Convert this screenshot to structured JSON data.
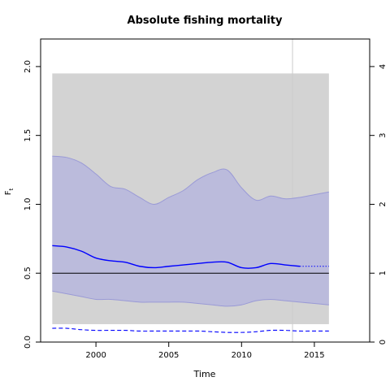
{
  "chart_data": {
    "type": "line",
    "title": "Absolute fishing mortality",
    "xlabel": "Time",
    "ylabel": "F",
    "ylabel_sub": "t",
    "xlim": [
      1996.2,
      2018.8
    ],
    "ylim": [
      0,
      2.2
    ],
    "xticks": [
      2000,
      2005,
      2010,
      2015
    ],
    "xtick_labels": [
      "2000",
      "2005",
      "2010",
      "2015"
    ],
    "yticks": [
      0.0,
      0.5,
      1.0,
      1.5,
      2.0
    ],
    "ytick_labels": [
      "0.0",
      "0.5",
      "1.0",
      "1.5",
      "2.0"
    ],
    "y2_ticks": [
      0,
      0.5,
      1.0,
      1.5,
      2.0
    ],
    "y2_tick_labels": [
      "0",
      "1",
      "2",
      "3",
      "4"
    ],
    "grey_band": {
      "x": [
        1997,
        2016
      ],
      "y": [
        0.13,
        1.95
      ],
      "color": "#d3d3d3"
    },
    "vline": {
      "x": 2013.5,
      "color": "#cccccc"
    },
    "hline": {
      "y": 0.5,
      "color": "#000000"
    },
    "ci": {
      "color": "#bbbbdc",
      "border": "#9a9ad6",
      "x": [
        1997,
        1998,
        1999,
        2000,
        2001,
        2002,
        2003,
        2004,
        2005,
        2006,
        2007,
        2008,
        2009,
        2010,
        2011,
        2012,
        2013,
        2014,
        2015,
        2016
      ],
      "upper": [
        1.35,
        1.34,
        1.3,
        1.22,
        1.13,
        1.11,
        1.05,
        1.0,
        1.05,
        1.1,
        1.18,
        1.23,
        1.25,
        1.12,
        1.03,
        1.06,
        1.04,
        1.05,
        1.07,
        1.09
      ],
      "lower": [
        0.37,
        0.35,
        0.33,
        0.31,
        0.31,
        0.3,
        0.29,
        0.29,
        0.29,
        0.29,
        0.28,
        0.27,
        0.26,
        0.27,
        0.3,
        0.31,
        0.3,
        0.29,
        0.28,
        0.27
      ]
    },
    "series": [
      {
        "color": "#0000ff",
        "style": "solid",
        "x": [
          1997,
          1998,
          1999,
          2000,
          2001,
          2002,
          2003,
          2004,
          2005,
          2006,
          2007,
          2008,
          2009,
          2010,
          2011,
          2012,
          2013,
          2014
        ],
        "values": [
          0.7,
          0.69,
          0.66,
          0.61,
          0.59,
          0.58,
          0.55,
          0.54,
          0.55,
          0.56,
          0.57,
          0.58,
          0.58,
          0.54,
          0.54,
          0.57,
          0.56,
          0.55
        ]
      },
      {
        "color": "#0000ff",
        "style": "dotted",
        "x": [
          2014,
          2016
        ],
        "values": [
          0.55,
          0.55
        ]
      },
      {
        "color": "#0000ff",
        "style": "dashed",
        "x": [
          1997,
          1998,
          1999,
          2000,
          2001,
          2002,
          2003,
          2004,
          2005,
          2006,
          2007,
          2008,
          2009,
          2010,
          2011,
          2012,
          2013,
          2014,
          2015,
          2016
        ],
        "values": [
          0.1,
          0.1,
          0.09,
          0.085,
          0.085,
          0.085,
          0.08,
          0.08,
          0.08,
          0.08,
          0.08,
          0.075,
          0.07,
          0.07,
          0.075,
          0.085,
          0.085,
          0.08,
          0.08,
          0.08
        ]
      }
    ]
  }
}
